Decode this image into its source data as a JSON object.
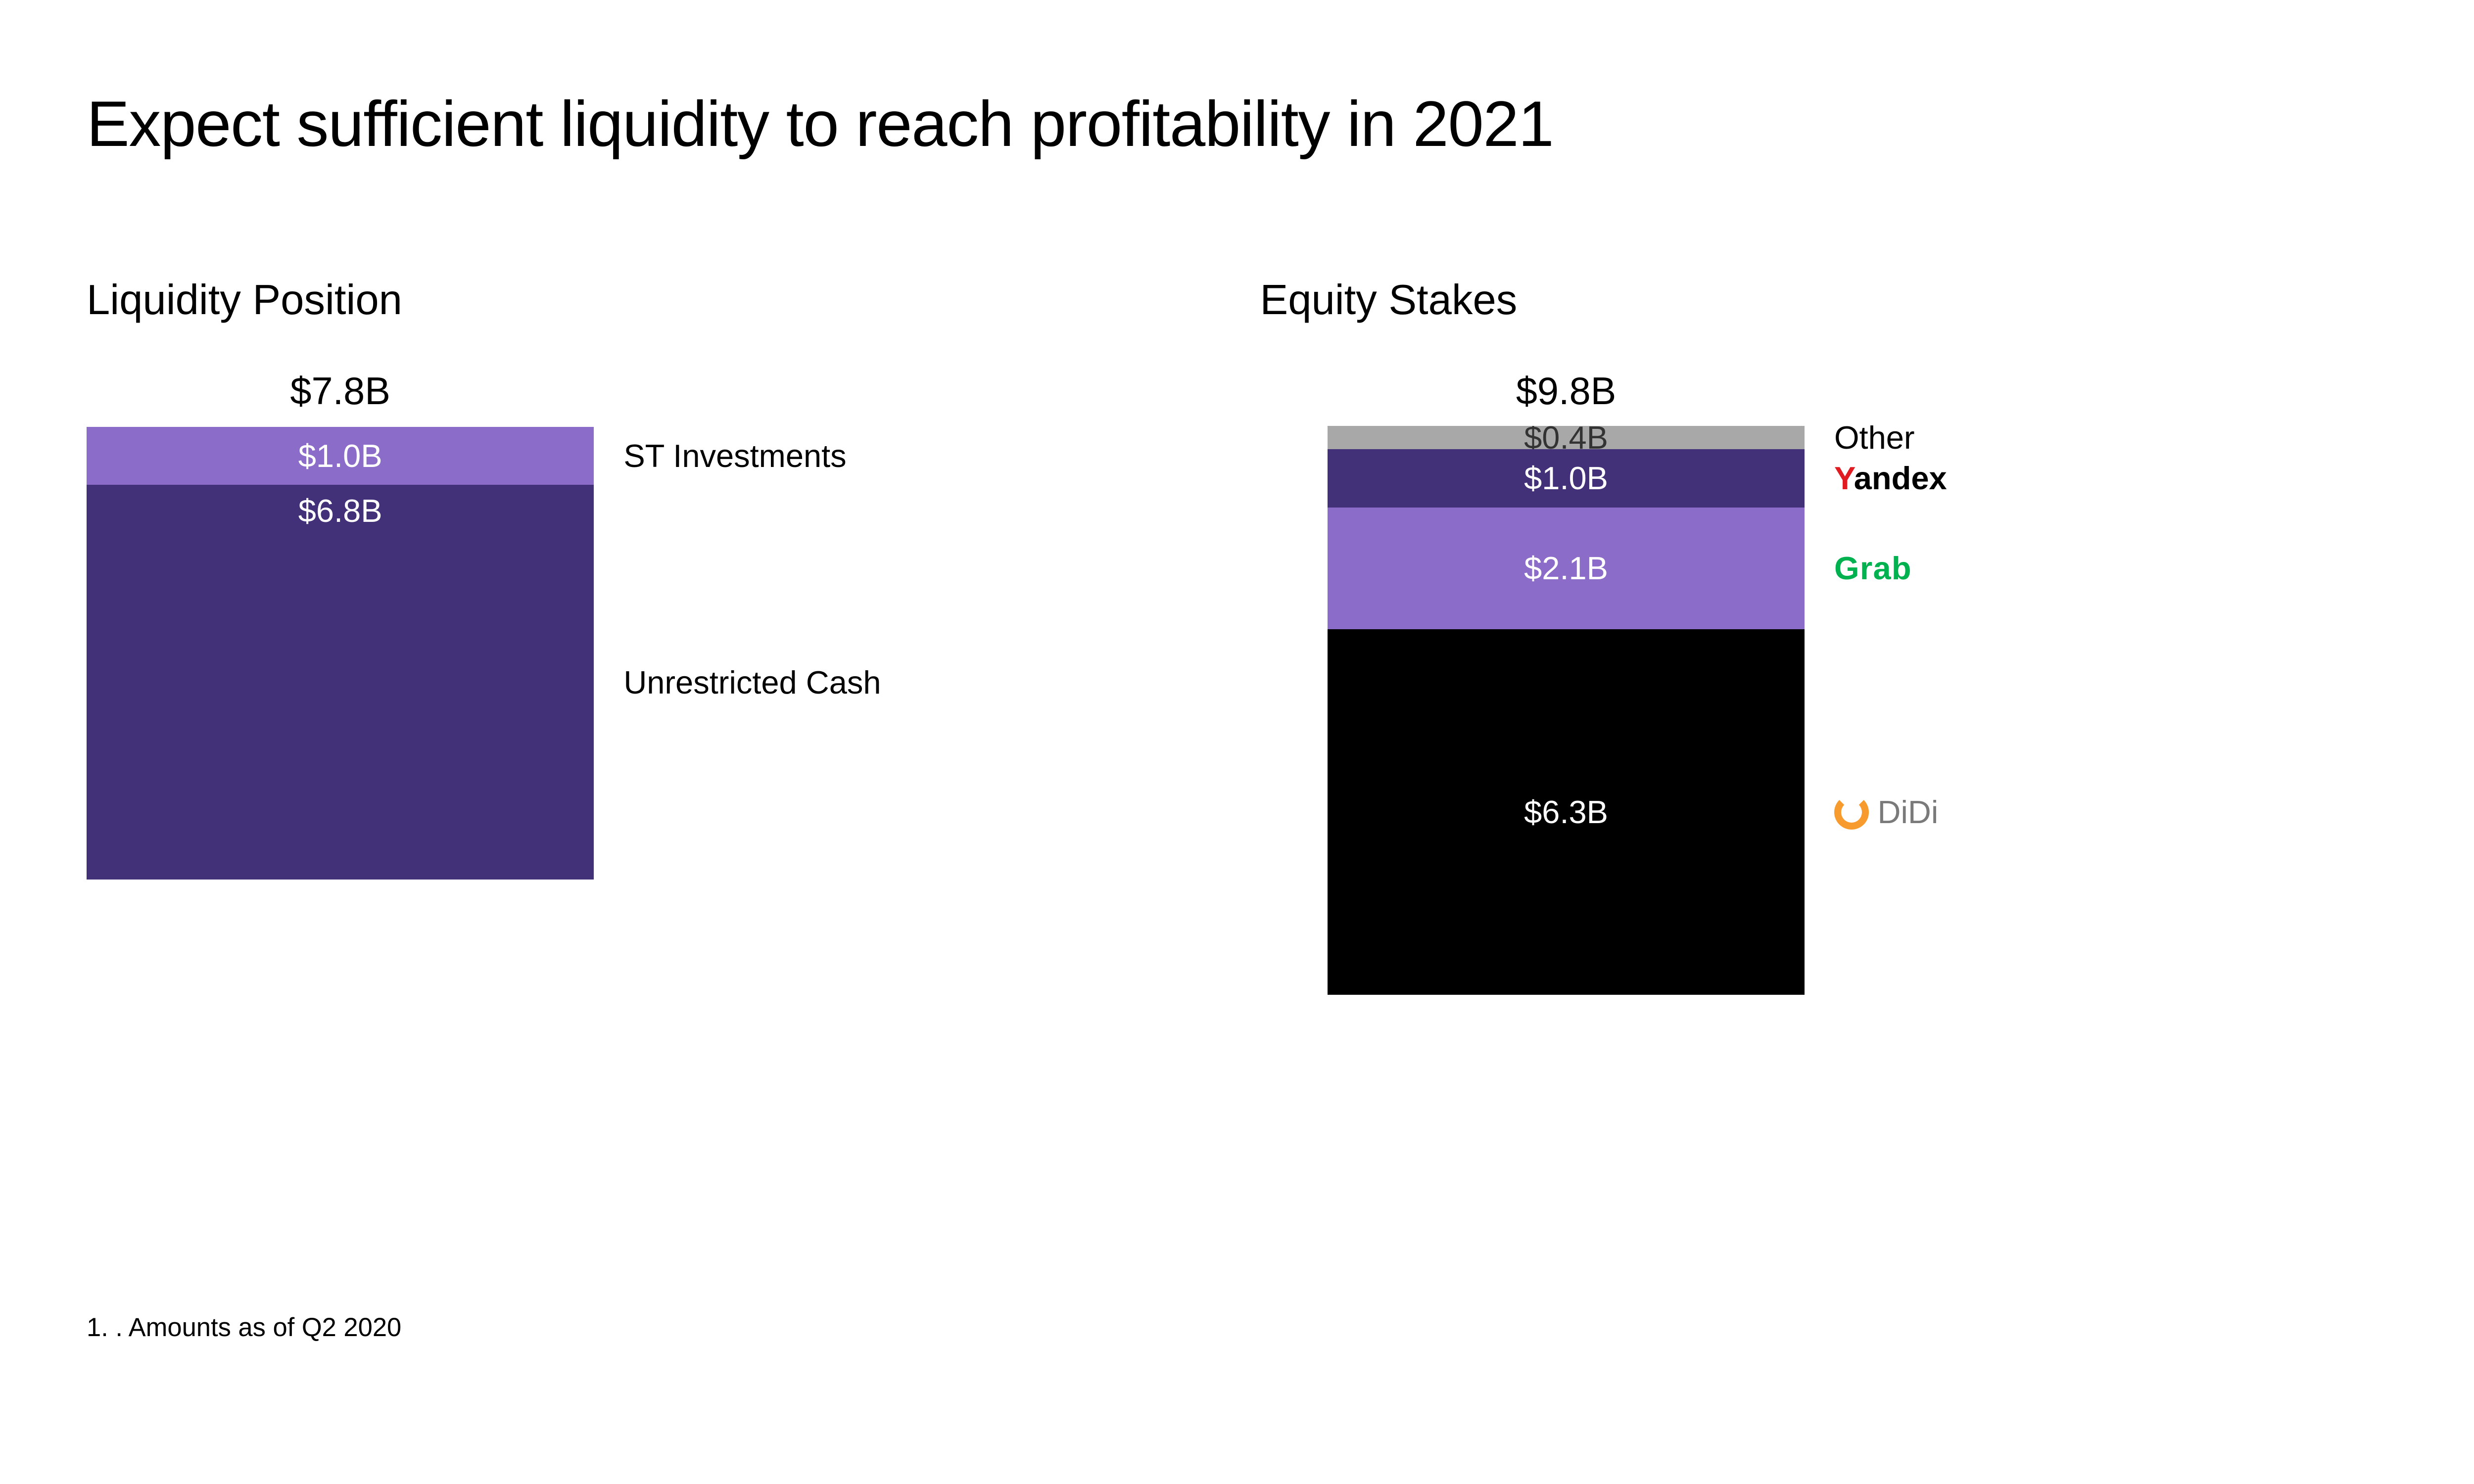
{
  "title": "Expect sufficient liquidity to reach profitability in 2021",
  "footnote": "1. . Amounts as of Q2 2020",
  "liquidity": {
    "label": "Liquidity Position",
    "total_label": "$7.8B",
    "total_value": 7.8,
    "bar_width_pct": 45,
    "segments": [
      {
        "name": "st-investments",
        "value": 1.0,
        "value_label": "$1.0B",
        "color": "#8b6cc9",
        "text_color": "#ffffff",
        "legend": "ST Investments"
      },
      {
        "name": "unrestricted-cash",
        "value": 6.8,
        "value_label": "$6.8B",
        "color": "#423078",
        "text_color": "#ffffff",
        "legend": "Unrestricted Cash"
      }
    ]
  },
  "equity": {
    "label": "Equity Stakes",
    "total_label": "$9.8B",
    "total_value": 9.8,
    "bar_width_pct": 45,
    "segments": [
      {
        "name": "other",
        "value": 0.4,
        "value_label": "$0.4B",
        "color": "#a8a8a8",
        "text_color": "#333333",
        "legend": "Other",
        "brand": "plain"
      },
      {
        "name": "yandex",
        "value": 1.0,
        "value_label": "$1.0B",
        "color": "#423078",
        "text_color": "#ffffff",
        "legend": "Yandex",
        "brand": "yandex"
      },
      {
        "name": "grab",
        "value": 2.1,
        "value_label": "$2.1B",
        "color": "#8b6cc9",
        "text_color": "#ffffff",
        "legend": "Grab",
        "brand": "grab"
      },
      {
        "name": "didi",
        "value": 6.3,
        "value_label": "$6.3B",
        "color": "#000000",
        "text_color": "#ffffff",
        "legend": "DiDi",
        "brand": "didi"
      }
    ]
  },
  "layout": {
    "max_total": 9.8,
    "stack_max_height_vw": 23,
    "title_fontsize_vw": 2.6,
    "subtitle_fontsize_vw": 1.7,
    "value_fontsize_vw": 1.3,
    "background_color": "#ffffff"
  }
}
